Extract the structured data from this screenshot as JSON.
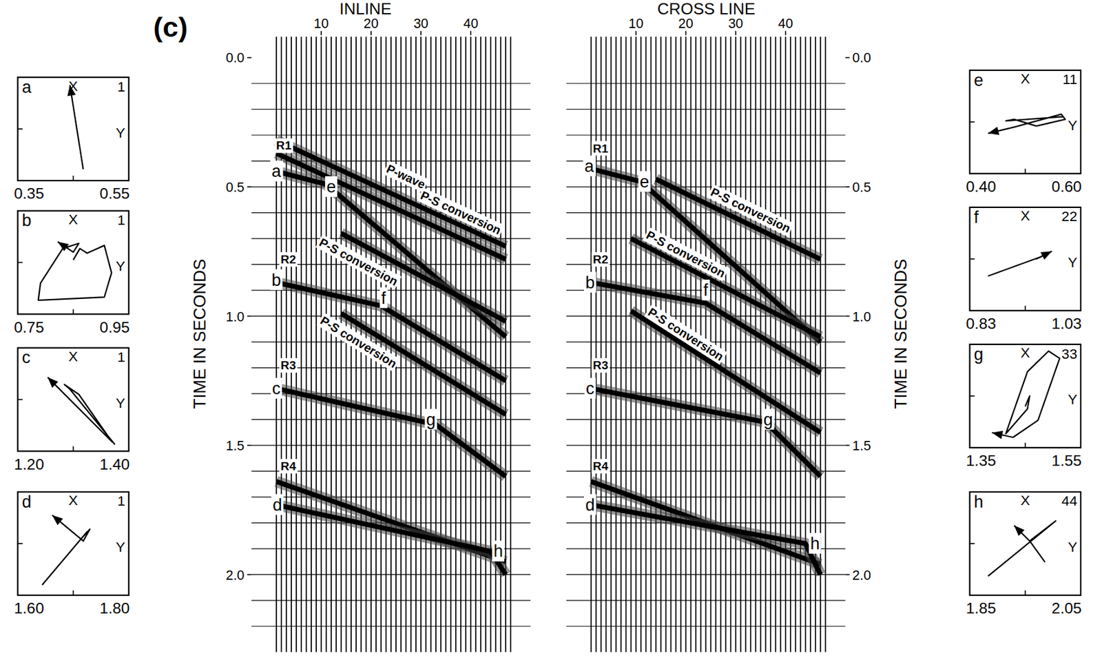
{
  "panel_label": "(c)",
  "chart_data": [
    {
      "type": "wiggle",
      "title": "INLINE",
      "y_label": "TIME IN SECONDS",
      "xlim": [
        -4,
        52
      ],
      "xticks": [
        10,
        20,
        30,
        40
      ],
      "ylim": [
        0,
        2.3
      ],
      "yticks": [
        {
          "value": 0,
          "label": "0.0"
        },
        0.5,
        {
          "value": 1,
          "label": "1.0"
        },
        1.5,
        {
          "value": 2,
          "label": "2.0"
        }
      ],
      "grid_y": [
        0.1,
        0.2,
        0.3,
        0.4,
        0.5,
        0.6,
        0.7,
        0.8,
        0.9,
        1.0,
        1.1,
        1.2,
        1.3,
        1.4,
        1.5,
        1.6,
        1.7,
        1.8,
        1.9,
        2.0,
        2.1,
        2.2
      ],
      "trace_range": [
        1,
        48
      ],
      "series": [
        {
          "x": [
            1,
            47
          ],
          "values": [
            0.32,
            0.73
          ]
        },
        {
          "x": [
            1,
            47
          ],
          "values": [
            0.37,
            0.78
          ]
        },
        {
          "x": [
            1,
            11,
            47
          ],
          "values": [
            0.44,
            0.49,
            1.08
          ]
        },
        {
          "x": [
            14,
            47
          ],
          "values": [
            0.68,
            1.02
          ]
        },
        {
          "x": [
            1,
            22,
            47
          ],
          "values": [
            0.87,
            0.96,
            1.25
          ]
        },
        {
          "x": [
            14,
            47
          ],
          "values": [
            0.99,
            1.38
          ]
        },
        {
          "x": [
            1,
            33,
            47
          ],
          "values": [
            1.28,
            1.42,
            1.62
          ]
        },
        {
          "x": [
            1,
            47
          ],
          "values": [
            1.64,
            1.95
          ]
        },
        {
          "x": [
            1,
            44,
            47
          ],
          "values": [
            1.73,
            1.91,
            2.0
          ]
        }
      ],
      "annotations": [
        {
          "text": "P-wave",
          "x": 27,
          "y": 0.46,
          "series": 0
        },
        {
          "text": "P-S conversion",
          "x": 38,
          "y": 0.6,
          "series": 1
        },
        {
          "text": "R1",
          "x": 2.5,
          "y": 0.34
        },
        {
          "text": "a",
          "x": 1,
          "y": 0.44
        },
        {
          "text": "e",
          "x": 12,
          "y": 0.5
        },
        {
          "text": "P-S conversion",
          "x": 17.5,
          "y": 0.79,
          "series": 3
        },
        {
          "text": "R2",
          "x": 3.4,
          "y": 0.78
        },
        {
          "text": "b",
          "x": 1,
          "y": 0.86
        },
        {
          "text": "f",
          "x": 22.5,
          "y": 0.93
        },
        {
          "text": "P-S conversion",
          "x": 17.5,
          "y": 1.1,
          "series": 5
        },
        {
          "text": "R3",
          "x": 3.4,
          "y": 1.19
        },
        {
          "text": "c",
          "x": 1,
          "y": 1.28
        },
        {
          "text": "g",
          "x": 32,
          "y": 1.4
        },
        {
          "text": "R4",
          "x": 3.4,
          "y": 1.58
        },
        {
          "text": "d",
          "x": 1.2,
          "y": 1.73
        },
        {
          "text": "h",
          "x": 45.5,
          "y": 1.91
        }
      ]
    },
    {
      "type": "wiggle",
      "title": "CROSS LINE",
      "y_label": "TIME IN SECONDS",
      "xlim": [
        -4,
        52
      ],
      "xticks": [
        10,
        20,
        30,
        40
      ],
      "ylim": [
        0,
        2.3
      ],
      "yticks": [
        {
          "value": 0,
          "label": "0.0"
        },
        0.5,
        {
          "value": 1,
          "label": "1.0"
        },
        1.5,
        {
          "value": 2,
          "label": "2.0"
        }
      ],
      "grid_y": [
        0.1,
        0.2,
        0.3,
        0.4,
        0.5,
        0.6,
        0.7,
        0.8,
        0.9,
        1.0,
        1.1,
        1.2,
        1.3,
        1.4,
        1.5,
        1.6,
        1.7,
        1.8,
        1.9,
        2.0,
        2.1,
        2.2
      ],
      "trace_range": [
        1,
        48
      ],
      "series": [
        {
          "x": [
            14,
            47
          ],
          "values": [
            0.47,
            0.78
          ]
        },
        {
          "x": [
            1,
            11,
            47
          ],
          "values": [
            0.43,
            0.48,
            1.1
          ]
        },
        {
          "x": [
            9,
            47
          ],
          "values": [
            0.7,
            1.08
          ]
        },
        {
          "x": [
            1,
            24,
            47
          ],
          "values": [
            0.87,
            0.95,
            1.22
          ]
        },
        {
          "x": [
            9,
            47
          ],
          "values": [
            0.98,
            1.45
          ]
        },
        {
          "x": [
            1,
            36,
            47
          ],
          "values": [
            1.28,
            1.41,
            1.62
          ]
        },
        {
          "x": [
            1,
            47
          ],
          "values": [
            1.64,
            1.96
          ]
        },
        {
          "x": [
            1,
            44,
            47
          ],
          "values": [
            1.73,
            1.88,
            2.0
          ]
        }
      ],
      "annotations": [
        {
          "text": "P-S conversion",
          "x": 33,
          "y": 0.59,
          "series": 0
        },
        {
          "text": "R1",
          "x": 2.9,
          "y": 0.35
        },
        {
          "text": "a",
          "x": 0.6,
          "y": 0.42
        },
        {
          "text": "e",
          "x": 11.7,
          "y": 0.48
        },
        {
          "text": "R2",
          "x": 2.9,
          "y": 0.78
        },
        {
          "text": "b",
          "x": 0.8,
          "y": 0.87
        },
        {
          "text": "P-S conversion",
          "x": 20,
          "y": 0.76,
          "series": 2
        },
        {
          "text": "f",
          "x": 24,
          "y": 0.9
        },
        {
          "text": "P-S conversion",
          "x": 20,
          "y": 1.07,
          "series": 4
        },
        {
          "text": "R3",
          "x": 2.9,
          "y": 1.19
        },
        {
          "text": "c",
          "x": 0.8,
          "y": 1.28
        },
        {
          "text": "g",
          "x": 36.5,
          "y": 1.4
        },
        {
          "text": "R4",
          "x": 2.9,
          "y": 1.58
        },
        {
          "text": "d",
          "x": 0.8,
          "y": 1.73
        },
        {
          "text": "h",
          "x": 45.9,
          "y": 1.88
        }
      ]
    },
    {
      "type": "hodogram",
      "title": "a",
      "axis_labels": [
        "X",
        "Y"
      ],
      "trace": 1,
      "window": [
        0.35,
        0.55
      ],
      "xlim": [
        -1,
        1
      ],
      "ylim": [
        -1,
        1
      ],
      "tick_labels": false,
      "x": [
        0.18,
        0.05,
        -0.06
      ],
      "values": [
        -0.78,
        0.1,
        0.85
      ]
    },
    {
      "type": "hodogram",
      "title": "b",
      "axis_labels": [
        "X",
        "Y"
      ],
      "trace": 1,
      "window": [
        0.75,
        0.95
      ],
      "xlim": [
        -1,
        1
      ],
      "ylim": [
        -1,
        1
      ],
      "tick_labels": false,
      "x": [
        0.0,
        0.12,
        0.25,
        0.56,
        0.69,
        0.56,
        -0.63,
        -0.59,
        -0.19,
        0.1,
        0.0,
        -0.28
      ],
      "values": [
        0.05,
        0.27,
        0.18,
        0.33,
        -0.2,
        -0.67,
        -0.73,
        -0.4,
        0.27,
        0.37,
        0.2,
        0.4
      ]
    },
    {
      "type": "hodogram",
      "title": "c",
      "axis_labels": [
        "X",
        "Y"
      ],
      "trace": 1,
      "window": [
        {
          "value": 1.2,
          "label": "1.20"
        },
        {
          "value": 1.4,
          "label": "1.40"
        }
      ],
      "xlim": [
        -1,
        1
      ],
      "ylim": [
        -1,
        1
      ],
      "tick_labels": false,
      "x": [
        0.75,
        -0.06,
        -0.16,
        0.1,
        0.7,
        -0.46
      ],
      "values": [
        -0.87,
        0.2,
        0.29,
        0.1,
        -0.82,
        0.43
      ]
    },
    {
      "type": "hodogram",
      "title": "d",
      "axis_labels": [
        "X",
        "Y"
      ],
      "trace": 1,
      "window": [
        {
          "value": 1.6,
          "label": "1.60"
        },
        {
          "value": 1.8,
          "label": "1.80"
        }
      ],
      "xlim": [
        -1,
        1
      ],
      "ylim": [
        -1,
        1
      ],
      "tick_labels": false,
      "x": [
        -0.56,
        0.25,
        0.15,
        0.3,
        0.18,
        -0.38
      ],
      "values": [
        -0.8,
        0.23,
        0.1,
        0.28,
        0.05,
        0.55
      ]
    },
    {
      "type": "hodogram",
      "title": "e",
      "axis_labels": [
        "X",
        "Y"
      ],
      "trace": 11,
      "window": [
        {
          "value": 0.4,
          "label": "0.40"
        },
        {
          "value": 0.6,
          "label": "0.60"
        }
      ],
      "xlim": [
        -1,
        1
      ],
      "ylim": [
        -1,
        1
      ],
      "tick_labels": false,
      "x": [
        0.68,
        -0.35,
        -0.2,
        0.2,
        0.72,
        0.65,
        -0.2,
        -0.67
      ],
      "values": [
        0.1,
        0.02,
        0.05,
        -0.08,
        0.05,
        0.15,
        -0.1,
        -0.22
      ]
    },
    {
      "type": "hodogram",
      "title": "f",
      "axis_labels": [
        "X",
        "Y"
      ],
      "trace": 22,
      "window": [
        0.83,
        1.03
      ],
      "xlim": [
        -1,
        1
      ],
      "ylim": [
        -1,
        1
      ],
      "tick_labels": false,
      "x": [
        -0.67,
        0.3,
        0.2,
        0.48
      ],
      "values": [
        -0.33,
        0.05,
        0.0,
        0.15
      ]
    },
    {
      "type": "hodogram",
      "title": "g",
      "axis_labels": [
        "X",
        "Y"
      ],
      "trace": 33,
      "window": [
        1.35,
        1.55
      ],
      "xlim": [
        -1,
        1
      ],
      "ylim": [
        -1,
        1
      ],
      "tick_labels": false,
      "x": [
        0.0,
        0.08,
        0.04,
        -0.35,
        0.04,
        0.42,
        0.62,
        0.23,
        -0.22,
        -0.6
      ],
      "values": [
        -0.2,
        0.0,
        -0.25,
        -0.73,
        0.47,
        0.87,
        0.73,
        -0.47,
        -0.8,
        -0.71
      ]
    },
    {
      "type": "hodogram",
      "title": "h",
      "axis_labels": [
        "X",
        "Y"
      ],
      "trace": 44,
      "window": [
        1.85,
        2.05
      ],
      "xlim": [
        -1,
        1
      ],
      "ylim": [
        -1,
        1
      ],
      "tick_labels": false,
      "x": [
        -0.67,
        0.55,
        0.08,
        0.35,
        0.08,
        -0.2
      ],
      "values": [
        -0.63,
        0.44,
        0.05,
        -0.35,
        0.05,
        0.35
      ]
    }
  ]
}
